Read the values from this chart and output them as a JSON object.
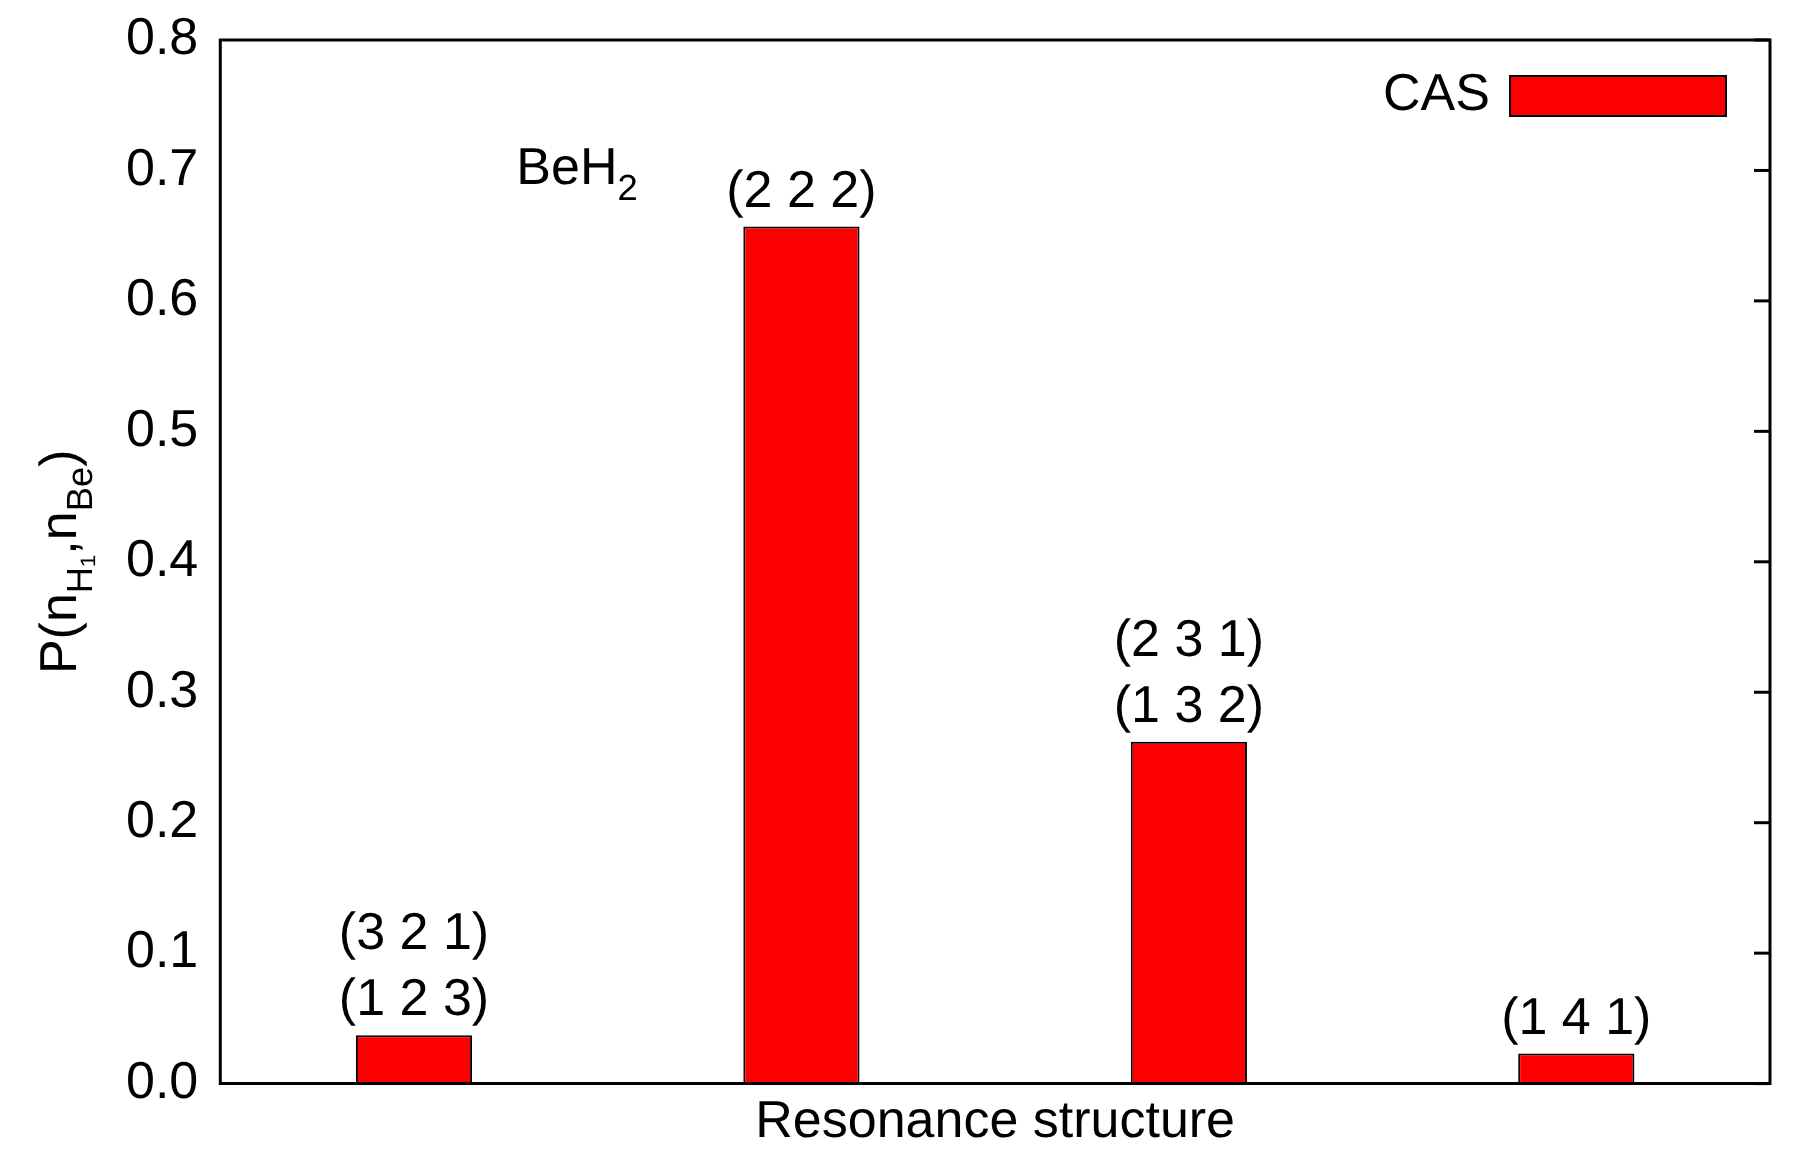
{
  "chart_data": {
    "type": "bar",
    "xlabel": "Resonance structure",
    "ylabel": "P(n$_{H₁}$,n$_{Be}$)",
    "categories": [
      null,
      null,
      null,
      null
    ],
    "series": [
      {
        "name": "CAS",
        "color": "#ff0000",
        "values": [
          0.037,
          0.657,
          0.262,
          0.023
        ]
      }
    ],
    "value_labels": [
      "(3 2 1)\n(1 2 3)",
      "(2 2 2)",
      "(2 3 1)\n(1 3 2)",
      "(1 4 1)"
    ],
    "annotations": [
      "BeH$_{2}$"
    ],
    "ylim": [
      0,
      0.8
    ],
    "yticks": [
      {
        "value": 0,
        "label": "0.0"
      },
      0.1,
      0.2,
      0.3,
      0.4,
      0.5,
      0.6,
      0.7,
      0.8
    ],
    "tick_labels": "y",
    "legend": "top right",
    "grid": false
  }
}
